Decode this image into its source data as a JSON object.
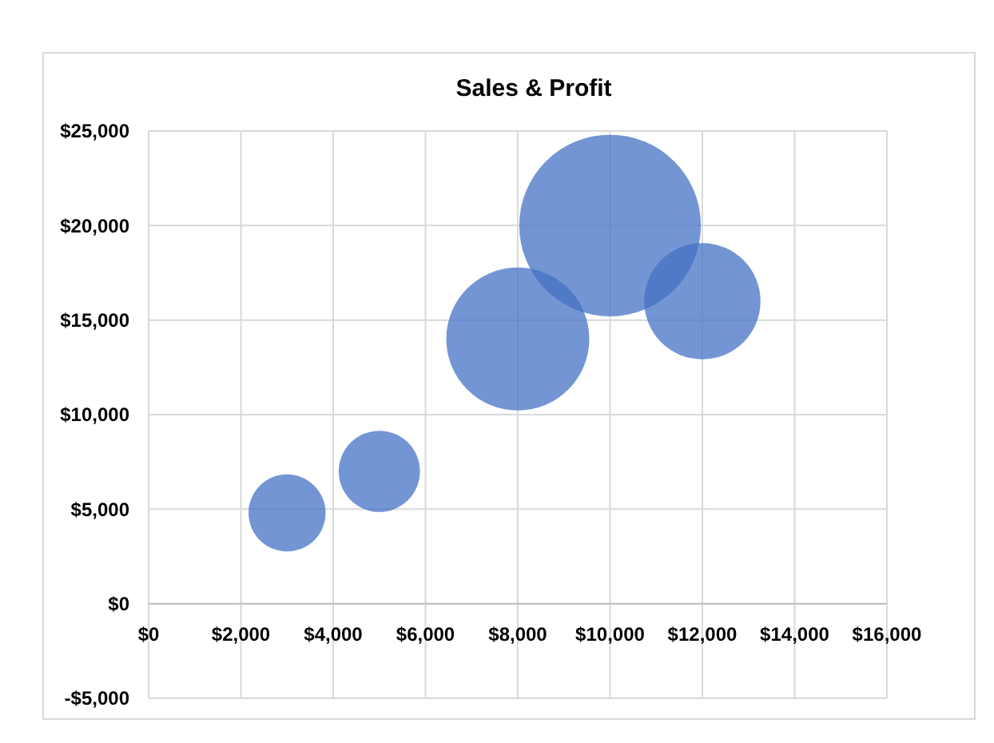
{
  "chart_data": {
    "type": "bubble",
    "title": "Sales & Profit",
    "x": [
      3000,
      5000,
      8000,
      10000,
      12000
    ],
    "values": [
      4800,
      7000,
      14000,
      20000,
      16000
    ],
    "sizes": [
      0.18,
      0.2,
      0.62,
      1,
      0.41
    ],
    "color": "#4472c4",
    "xlim": [
      0,
      16000
    ],
    "xticks": [
      {
        "value": 0,
        "label": "$0"
      },
      {
        "value": 2000,
        "label": "$2,000"
      },
      {
        "value": 4000,
        "label": "$4,000"
      },
      {
        "value": 6000,
        "label": "$6,000"
      },
      {
        "value": 8000,
        "label": "$8,000"
      },
      {
        "value": 10000,
        "label": "$10,000"
      },
      {
        "value": 12000,
        "label": "$12,000"
      },
      {
        "value": 14000,
        "label": "$14,000"
      },
      {
        "value": 16000,
        "label": "$16,000"
      }
    ],
    "ylim": [
      -5000,
      25000
    ],
    "yticks": [
      {
        "value": -5000,
        "label": "-$5,000"
      },
      {
        "value": 0,
        "label": "$0"
      },
      {
        "value": 5000,
        "label": "$5,000"
      },
      {
        "value": 10000,
        "label": "$10,000"
      },
      {
        "value": 15000,
        "label": "$15,000"
      },
      {
        "value": 20000,
        "label": "$20,000"
      },
      {
        "value": 25000,
        "label": "$25,000"
      }
    ],
    "grid": true
  }
}
